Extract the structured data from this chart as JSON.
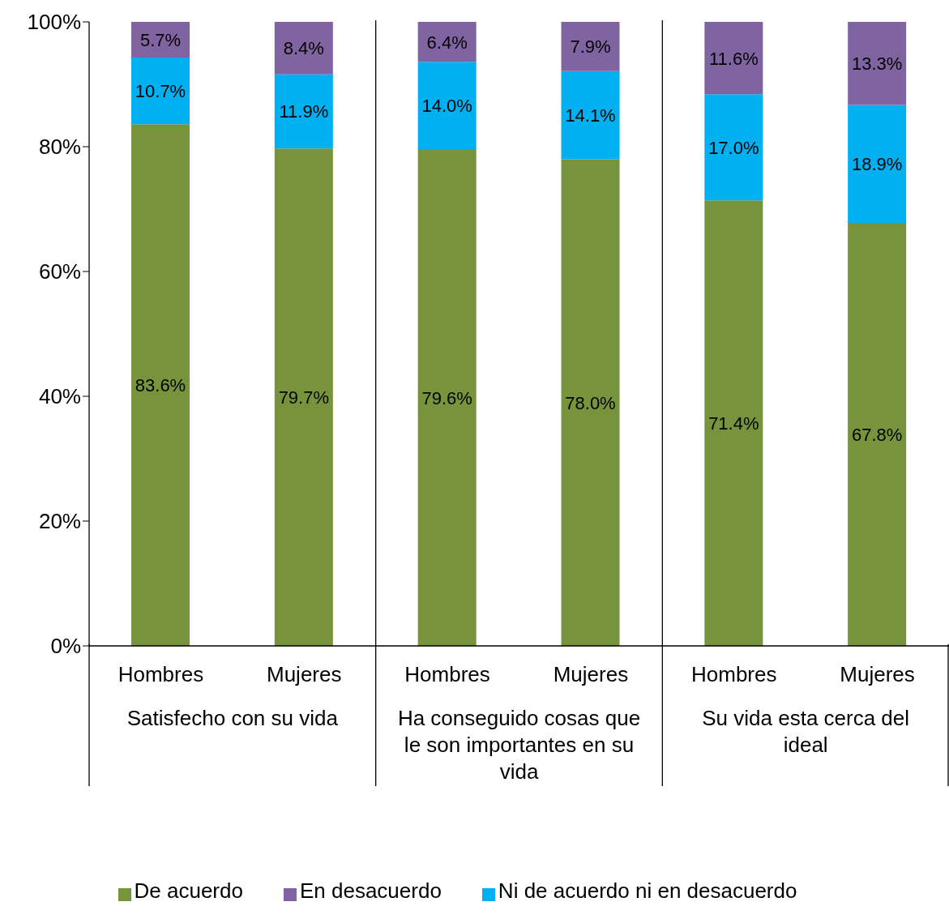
{
  "chart_data": {
    "type": "bar",
    "stacked": true,
    "legend": "bottom",
    "grid": false,
    "categories": [
      "Hombres",
      "Mujeres",
      "Hombres",
      "Mujeres",
      "Hombres",
      "Mujeres"
    ],
    "annotations": [
      "Satisfecho con su vida",
      "Ha conseguido cosas que le son importantes en su vida",
      "Su vida esta cerca del ideal"
    ],
    "ylim": [
      0,
      100
    ],
    "yticks": [
      {
        "value": 0,
        "label": "0%"
      },
      {
        "value": 20,
        "label": "20%"
      },
      {
        "value": 40,
        "label": "40%"
      },
      {
        "value": 60,
        "label": "60%"
      },
      {
        "value": 80,
        "label": "80%"
      },
      {
        "value": 100,
        "label": "100%"
      }
    ],
    "series": [
      {
        "name": "De acuerdo",
        "color": "#77933c",
        "values": [
          83.6,
          79.7,
          79.6,
          78.0,
          71.4,
          67.8
        ],
        "value_labels": [
          "83.6%",
          "79.7%",
          "79.6%",
          "78.0%",
          "71.4%",
          "67.8%"
        ]
      },
      {
        "name": "Ni de acuerdo ni en desacuerdo",
        "color": "#00b0f0",
        "values": [
          10.7,
          11.9,
          14.0,
          14.1,
          17.0,
          18.9
        ],
        "value_labels": [
          "10.7%",
          "11.9%",
          "14.0%",
          "14.1%",
          "17.0%",
          "18.9%"
        ]
      },
      {
        "name": "En desacuerdo",
        "color": "#8064a2",
        "values": [
          5.7,
          8.4,
          6.4,
          7.9,
          11.6,
          13.3
        ],
        "value_labels": [
          "5.7%",
          "8.4%",
          "6.4%",
          "7.9%",
          "11.6%",
          "13.3%"
        ]
      }
    ]
  }
}
